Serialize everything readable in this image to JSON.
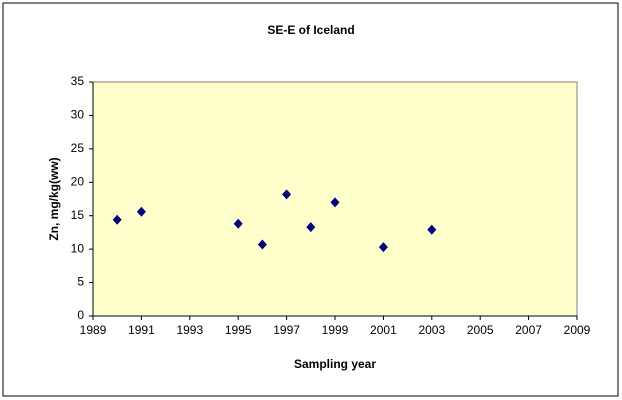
{
  "chart_data": {
    "type": "scatter",
    "title": "SE-E  of Iceland",
    "x_label": "Sampling year",
    "y_label": "Zn, mg/kg(ww)",
    "x": [
      1990,
      1991,
      1995,
      1996,
      1997,
      1998,
      1999,
      2001,
      2003
    ],
    "values": [
      14.4,
      15.6,
      13.8,
      10.7,
      18.2,
      13.3,
      17.0,
      10.3,
      12.9
    ],
    "color": "#000080",
    "plot_background": "#ffffcc",
    "xlim": [
      1989,
      2009
    ],
    "xticks": [
      1989,
      1991,
      1993,
      1995,
      1997,
      1999,
      2001,
      2003,
      2005,
      2007,
      2009
    ],
    "ylim": [
      0,
      35
    ],
    "yticks": [
      0,
      5,
      10,
      15,
      20,
      25,
      30,
      35
    ],
    "grid": false
  }
}
